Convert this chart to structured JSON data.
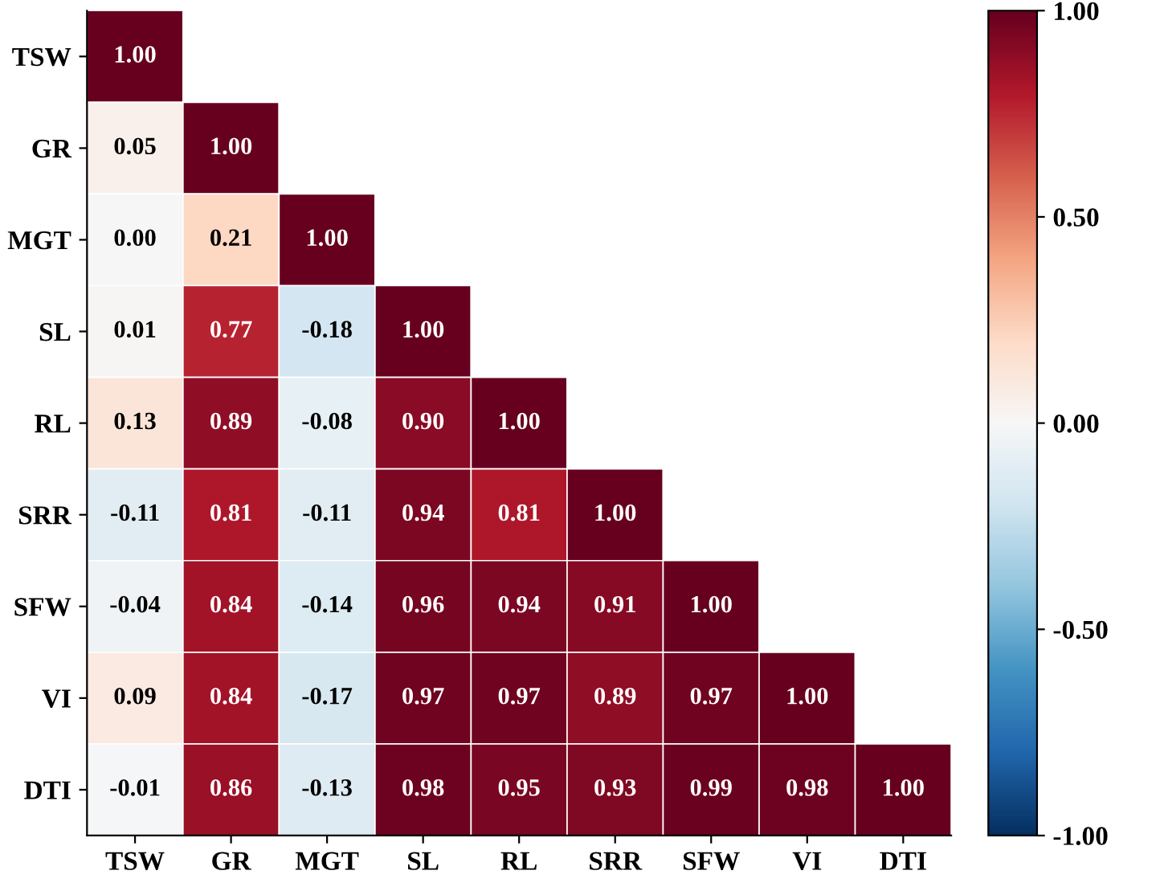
{
  "chart_data": {
    "type": "heatmap",
    "categories": [
      "TSW",
      "GR",
      "MGT",
      "SL",
      "RL",
      "SRR",
      "SFW",
      "VI",
      "DTI"
    ],
    "y_categories": [
      "TSW",
      "GR",
      "MGT",
      "SL",
      "RL",
      "SRR",
      "SFW",
      "VI",
      "DTI"
    ],
    "cells": [
      [
        1.0,
        null,
        null,
        null,
        null,
        null,
        null,
        null,
        null
      ],
      [
        0.05,
        1.0,
        null,
        null,
        null,
        null,
        null,
        null,
        null
      ],
      [
        0.0,
        0.21,
        1.0,
        null,
        null,
        null,
        null,
        null,
        null
      ],
      [
        0.01,
        0.77,
        -0.18,
        1.0,
        null,
        null,
        null,
        null,
        null
      ],
      [
        0.13,
        0.89,
        -0.08,
        0.9,
        1.0,
        null,
        null,
        null,
        null
      ],
      [
        -0.11,
        0.81,
        -0.11,
        0.94,
        0.81,
        1.0,
        null,
        null,
        null
      ],
      [
        -0.04,
        0.84,
        -0.14,
        0.96,
        0.94,
        0.91,
        1.0,
        null,
        null
      ],
      [
        0.09,
        0.84,
        -0.17,
        0.97,
        0.97,
        0.89,
        0.97,
        1.0,
        null
      ],
      [
        -0.01,
        0.86,
        -0.13,
        0.98,
        0.95,
        0.93,
        0.99,
        0.98,
        1.0
      ]
    ],
    "cell_labels": [
      [
        "1.00",
        null,
        null,
        null,
        null,
        null,
        null,
        null,
        null
      ],
      [
        "0.05",
        "1.00",
        null,
        null,
        null,
        null,
        null,
        null,
        null
      ],
      [
        "0.00",
        "0.21",
        "1.00",
        null,
        null,
        null,
        null,
        null,
        null
      ],
      [
        "0.01",
        "0.77",
        "-0.18",
        "1.00",
        null,
        null,
        null,
        null,
        null
      ],
      [
        "0.13",
        "0.89",
        "-0.08",
        "0.90",
        "1.00",
        null,
        null,
        null,
        null
      ],
      [
        "-0.11",
        "0.81",
        "-0.11",
        "0.94",
        "0.81",
        "1.00",
        null,
        null,
        null
      ],
      [
        "-0.04",
        "0.84",
        "-0.14",
        "0.96",
        "0.94",
        "0.91",
        "1.00",
        null,
        null
      ],
      [
        "0.09",
        "0.84",
        "-0.17",
        "0.97",
        "0.97",
        "0.89",
        "0.97",
        "1.00",
        null
      ],
      [
        "-0.01",
        "0.86",
        "-0.13",
        "0.98",
        "0.95",
        "0.93",
        "0.99",
        "0.98",
        "1.00"
      ]
    ],
    "clim": [
      -1,
      1
    ],
    "cticks": [
      {
        "value": -1,
        "label": "-1.00"
      },
      {
        "value": -0.5,
        "label": "-0.50"
      },
      {
        "value": 0,
        "label": "0.00"
      },
      {
        "value": 0.5,
        "label": "0.50"
      },
      {
        "value": 1,
        "label": "1.00"
      }
    ]
  }
}
